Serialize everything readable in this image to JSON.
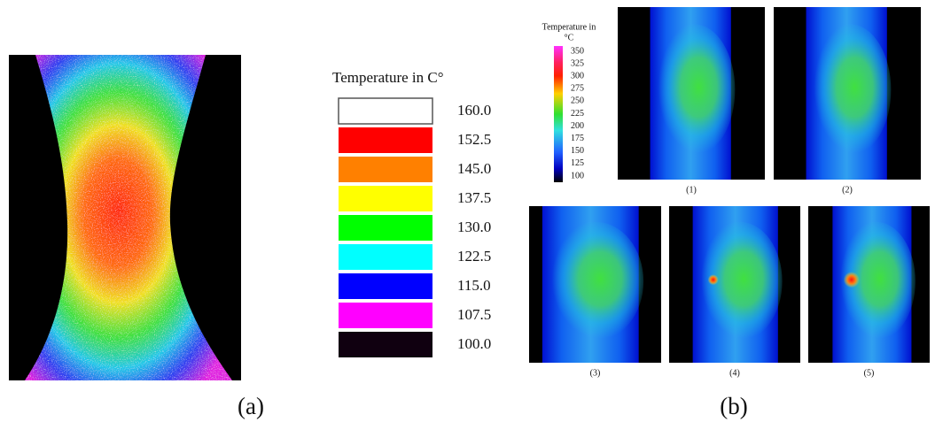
{
  "panel_a": {
    "label": "(a)",
    "legend": {
      "title": "Temperature in C°",
      "entries": [
        {
          "label": "160.0",
          "color": "#ffffff"
        },
        {
          "label": "152.5",
          "color": "#ff0000"
        },
        {
          "label": "145.0",
          "color": "#ff8000"
        },
        {
          "label": "137.5",
          "color": "#ffff00"
        },
        {
          "label": "130.0",
          "color": "#00ff00"
        },
        {
          "label": "122.5",
          "color": "#00ffff"
        },
        {
          "label": "115.0",
          "color": "#0000ff"
        },
        {
          "label": "107.5",
          "color": "#ff00ff"
        },
        {
          "label": "100.0",
          "color": "#100010"
        }
      ]
    }
  },
  "panel_b": {
    "label": "(b)",
    "legend": {
      "title_line1": "Temperature in",
      "title_line2": "°C",
      "ticks": [
        "350",
        "325",
        "300",
        "275",
        "250",
        "225",
        "200",
        "175",
        "150",
        "125",
        "100"
      ]
    },
    "images": [
      {
        "label": "(1)"
      },
      {
        "label": "(2)"
      },
      {
        "label": "(3)"
      },
      {
        "label": "(4)"
      },
      {
        "label": "(5)"
      }
    ]
  }
}
